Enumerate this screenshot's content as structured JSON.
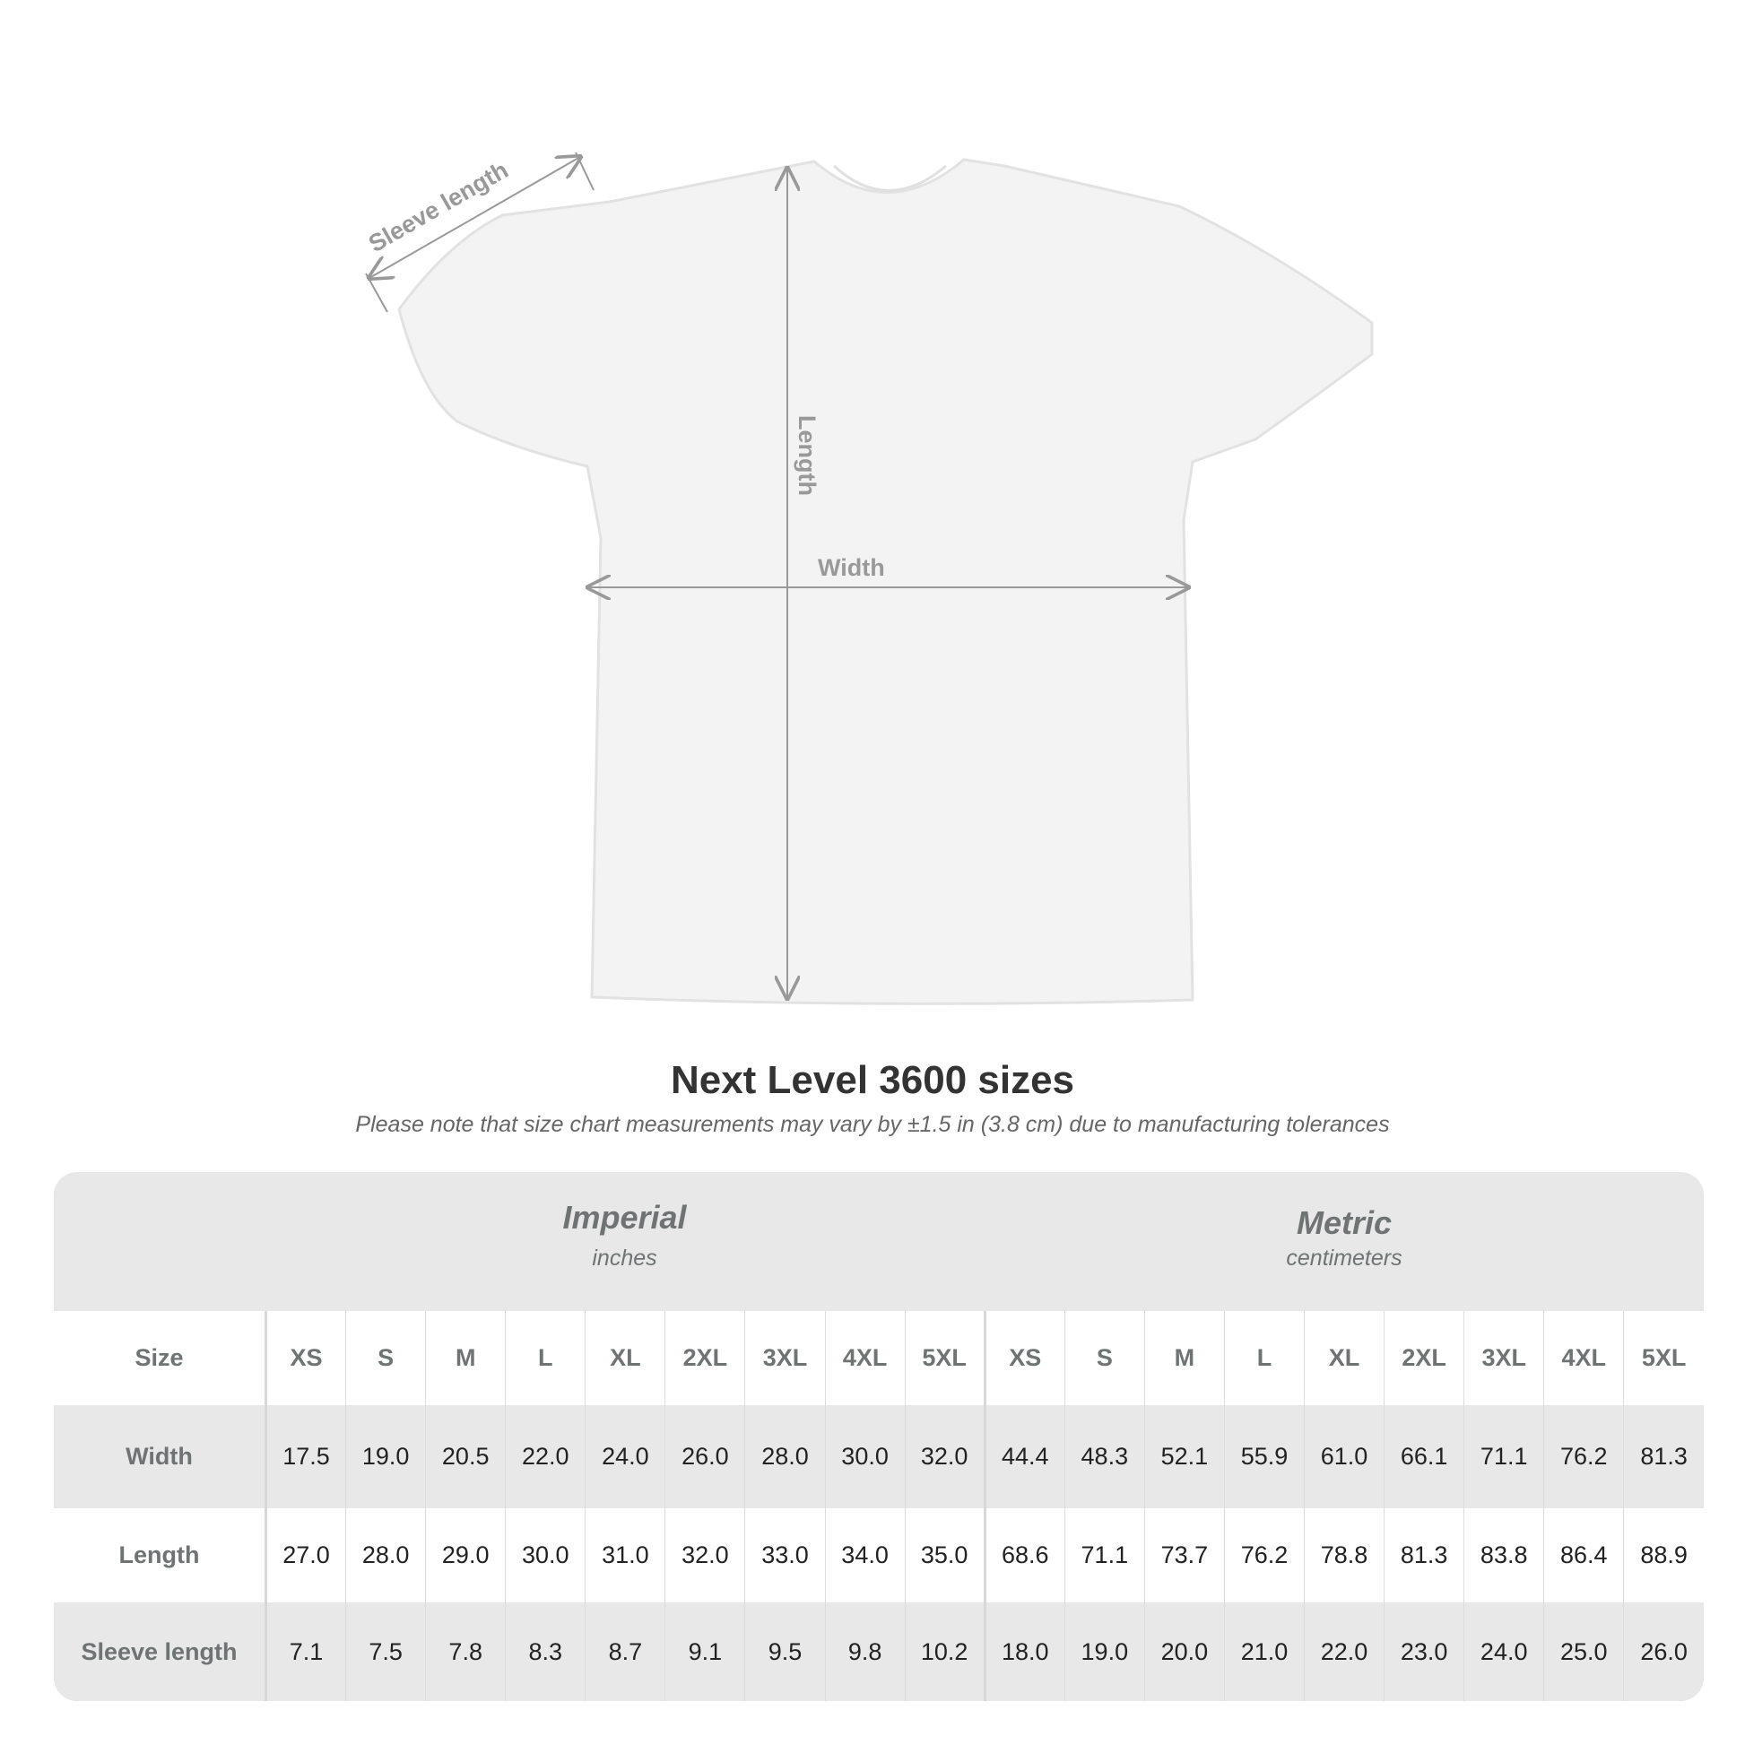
{
  "diagram": {
    "labels": {
      "sleeve": "Sleeve length",
      "length": "Length",
      "width": "Width"
    }
  },
  "title": "Next Level 3600 sizes",
  "subtitle": "Please note that size chart measurements may vary by ±1.5 in (3.8 cm) due to manufacturing tolerances",
  "table": {
    "imperial": {
      "title": "Imperial",
      "unit": "inches"
    },
    "metric": {
      "title": "Metric",
      "unit": "centimeters"
    },
    "size_label": "Size",
    "sizes": [
      "XS",
      "S",
      "M",
      "L",
      "XL",
      "2XL",
      "3XL",
      "4XL",
      "5XL"
    ],
    "rows": [
      {
        "label": "Width",
        "imperial": [
          "17.5",
          "19.0",
          "20.5",
          "22.0",
          "24.0",
          "26.0",
          "28.0",
          "30.0",
          "32.0"
        ],
        "metric": [
          "44.4",
          "48.3",
          "52.1",
          "55.9",
          "61.0",
          "66.1",
          "71.1",
          "76.2",
          "81.3"
        ]
      },
      {
        "label": "Length",
        "imperial": [
          "27.0",
          "28.0",
          "29.0",
          "30.0",
          "31.0",
          "32.0",
          "33.0",
          "34.0",
          "35.0"
        ],
        "metric": [
          "68.6",
          "71.1",
          "73.7",
          "76.2",
          "78.8",
          "81.3",
          "83.8",
          "86.4",
          "88.9"
        ]
      },
      {
        "label": "Sleeve length",
        "imperial": [
          "7.1",
          "7.5",
          "7.8",
          "8.3",
          "8.7",
          "9.1",
          "9.5",
          "9.8",
          "10.2"
        ],
        "metric": [
          "18.0",
          "19.0",
          "20.0",
          "21.0",
          "22.0",
          "23.0",
          "24.0",
          "25.0",
          "26.0"
        ]
      }
    ]
  }
}
